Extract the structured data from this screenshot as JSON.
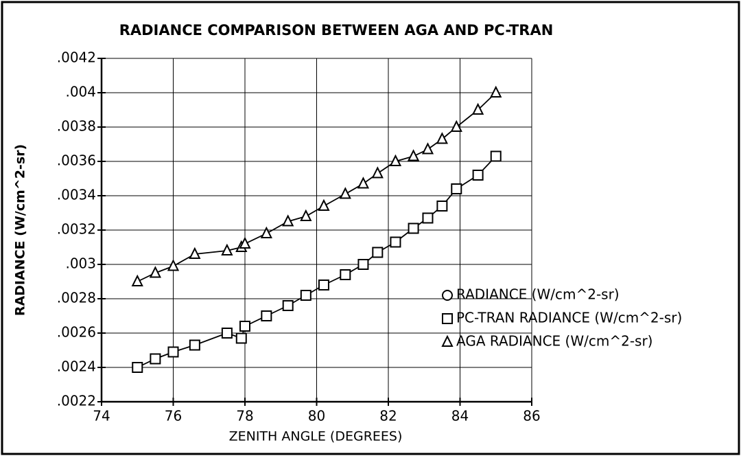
{
  "chart_data": {
    "type": "line",
    "title": "RADIANCE COMPARISON BETWEEN AGA AND PC-TRAN",
    "x_label": "ZENITH ANGLE (DEGREES)",
    "y_label": "RADIANCE (W/cm^2-sr)",
    "x": [
      75.0,
      75.5,
      76.0,
      76.6,
      77.5,
      77.9,
      78.0,
      78.6,
      79.2,
      79.7,
      80.2,
      80.8,
      81.3,
      81.7,
      82.2,
      82.7,
      83.1,
      83.5,
      83.9,
      84.5,
      85.0
    ],
    "series": [
      {
        "name": "RADIANCE (W/cm^2-sr)",
        "color": "#000000",
        "marker": "circle",
        "values": [
          null,
          null,
          null,
          null,
          null,
          null,
          null,
          null,
          null,
          null,
          null,
          null,
          null,
          null,
          null,
          null,
          null,
          null,
          null,
          null,
          null
        ]
      },
      {
        "name": "PC-TRAN RADIANCE (W/cm^2-sr)",
        "color": "#000000",
        "marker": "square",
        "values": [
          0.0024,
          0.00245,
          0.00249,
          0.00253,
          0.0026,
          0.00257,
          0.00264,
          0.0027,
          0.00276,
          0.00282,
          0.00288,
          0.00294,
          0.003,
          0.00307,
          0.00313,
          0.00321,
          0.00327,
          0.00334,
          0.00344,
          0.00352,
          0.00363
        ]
      },
      {
        "name": "AGA RADIANCE (W/cm^2-sr)",
        "color": "#000000",
        "marker": "triangle",
        "values": [
          0.0029,
          0.00295,
          0.00299,
          0.00306,
          0.00308,
          0.0031,
          0.00312,
          0.00318,
          0.00325,
          0.00328,
          0.00334,
          0.00341,
          0.00347,
          0.00353,
          0.0036,
          0.00363,
          0.00367,
          0.00373,
          0.0038,
          0.0039,
          0.004
        ]
      }
    ],
    "xlim": [
      74,
      86
    ],
    "xticks": [
      74,
      76,
      78,
      80,
      82,
      84,
      86
    ],
    "ylim": [
      0.0022,
      0.0042
    ],
    "yticks": [
      {
        "value": 0.0022,
        "label": ".0022"
      },
      {
        "value": 0.0024,
        "label": ".0024"
      },
      {
        "value": 0.0026,
        "label": ".0026"
      },
      {
        "value": 0.0028,
        "label": ".0028"
      },
      {
        "value": 0.003,
        "label": ".003"
      },
      {
        "value": 0.0032,
        "label": ".0032"
      },
      {
        "value": 0.0034,
        "label": ".0034"
      },
      {
        "value": 0.0036,
        "label": ".0036"
      },
      {
        "value": 0.0038,
        "label": ".0038"
      },
      {
        "value": 0.004,
        "label": ".004"
      },
      {
        "value": 0.0042,
        "label": ".0042"
      }
    ],
    "grid": true,
    "legend": "lower right"
  }
}
